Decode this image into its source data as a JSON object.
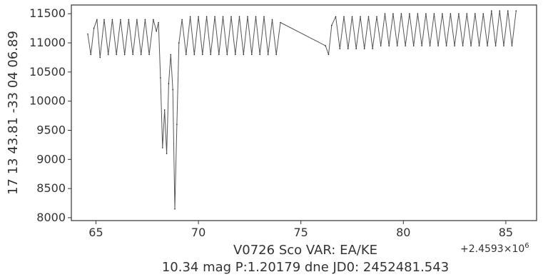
{
  "chart_data": {
    "type": "line",
    "title": "",
    "xlabel": "V0726 Sco VAR: EA/KE",
    "xlabel_line2": "10.34 mag P:1.20179 dne JD0: 2452481.543",
    "ylabel": "17 13 43.81 -33 04 06.89",
    "x_offset_text": "+2.4593×10",
    "x_offset_exponent": "6",
    "xlim": [
      63.8,
      86.5
    ],
    "ylim": [
      7950,
      11650
    ],
    "x_ticks": [
      65,
      70,
      75,
      80,
      85
    ],
    "x_tick_labels": [
      "65",
      "70",
      "75",
      "80",
      "85"
    ],
    "y_ticks": [
      8000,
      8500,
      9000,
      9500,
      10000,
      10500,
      11000,
      11500
    ],
    "y_tick_labels": [
      "8000",
      "8500",
      "9000",
      "9500",
      "10000",
      "10500",
      "11000",
      "11500"
    ],
    "grid": false,
    "legend": "none",
    "series": [
      {
        "color": "#555555",
        "x": [
          64.6,
          64.75,
          64.9,
          65.05,
          65.2,
          65.4,
          65.6,
          65.8,
          66.0,
          66.2,
          66.4,
          66.6,
          66.8,
          67.0,
          67.2,
          67.4,
          67.6,
          67.8,
          67.95,
          68.05,
          68.15,
          68.25,
          68.35,
          68.45,
          68.55,
          68.65,
          68.75,
          68.85,
          68.95,
          69.05,
          69.2,
          69.4,
          69.6,
          69.8,
          70.0,
          70.2,
          70.4,
          70.6,
          70.8,
          71.0,
          71.2,
          71.4,
          71.6,
          71.8,
          72.0,
          72.2,
          72.4,
          72.6,
          72.8,
          73.0,
          73.2,
          73.4,
          73.6,
          73.8,
          74.0,
          76.2,
          76.35,
          76.5,
          76.7,
          76.9,
          77.1,
          77.3,
          77.5,
          77.7,
          77.9,
          78.1,
          78.3,
          78.5,
          78.7,
          78.9,
          79.1,
          79.3,
          79.5,
          79.7,
          79.9,
          80.1,
          80.3,
          80.5,
          80.7,
          80.9,
          81.1,
          81.3,
          81.5,
          81.7,
          81.9,
          82.1,
          82.3,
          82.5,
          82.7,
          82.9,
          83.1,
          83.3,
          83.5,
          83.7,
          83.9,
          84.1,
          84.3,
          84.5,
          84.7,
          84.9,
          85.1,
          85.3,
          85.5
        ],
        "y": [
          11150,
          10800,
          11250,
          11400,
          10750,
          11400,
          10800,
          11400,
          10800,
          11400,
          10800,
          11400,
          10800,
          11400,
          10800,
          11400,
          10800,
          11400,
          11200,
          11350,
          10400,
          9200,
          9850,
          9100,
          10300,
          10800,
          10200,
          8150,
          9600,
          11000,
          11400,
          10800,
          11450,
          10800,
          11450,
          10800,
          11450,
          10800,
          11450,
          10800,
          11450,
          10800,
          11450,
          10800,
          11450,
          10800,
          11450,
          10800,
          11450,
          10800,
          11450,
          10800,
          11400,
          10800,
          11350,
          10950,
          10800,
          11300,
          11450,
          10900,
          11450,
          10900,
          11450,
          10900,
          11450,
          10900,
          11450,
          10900,
          11450,
          10950,
          11500,
          10950,
          11500,
          10950,
          11500,
          10950,
          11500,
          10950,
          11500,
          10950,
          11500,
          10950,
          11500,
          10950,
          11500,
          10950,
          11500,
          10950,
          11500,
          10950,
          11500,
          10950,
          11500,
          10950,
          11500,
          10950,
          11550,
          10950,
          11550,
          10950,
          11550,
          10950,
          11550
        ]
      }
    ]
  }
}
